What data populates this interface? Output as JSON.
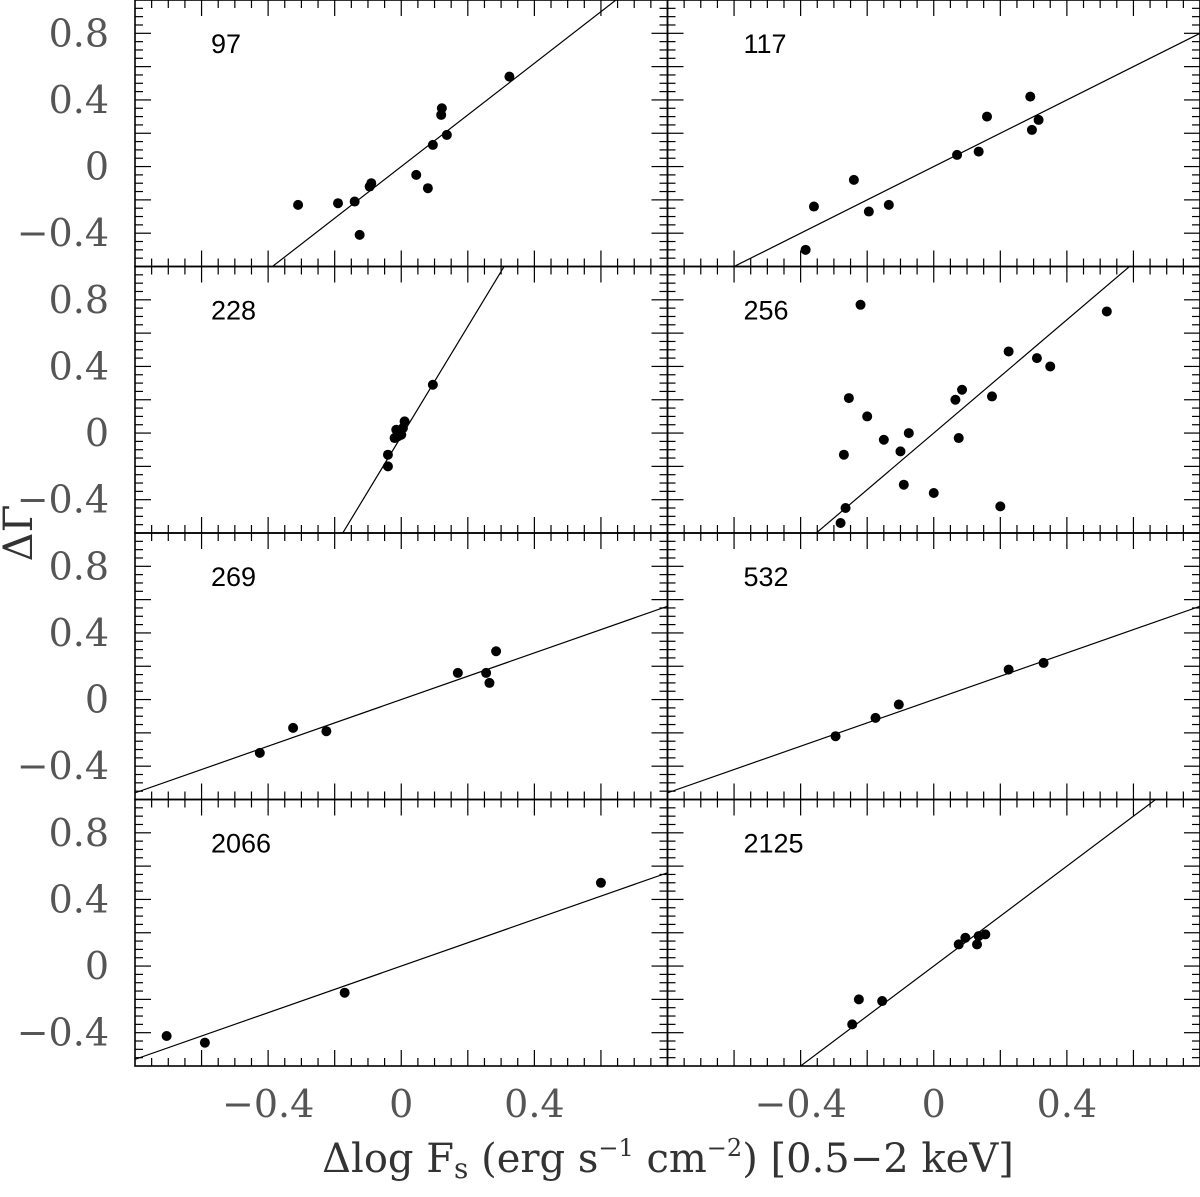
{
  "chart_data": {
    "type": "scatter",
    "layout": "4x2 grid of panels with shared axes",
    "xlabel": "Δlog F",
    "xlabel_subscript": "s",
    "xlabel_units_a": " (erg s",
    "xlabel_units_sup1": "−1",
    "xlabel_units_b": " cm",
    "xlabel_units_sup2": "−2",
    "xlabel_units_c": ") [0.5−2 keV]",
    "ylabel": "ΔΓ",
    "xlim": [
      -0.8,
      0.8
    ],
    "ylim": [
      -0.6,
      1.0
    ],
    "xticks_labeled": [
      -0.4,
      0,
      0.4
    ],
    "xtick_labels": [
      "−0.4",
      "0",
      "0.4"
    ],
    "yticks_labeled": [
      -0.4,
      0,
      0.4,
      0.8
    ],
    "ytick_labels": [
      "−0.4",
      "0",
      "0.4",
      "0.8"
    ],
    "grid": false,
    "marker_color": "#000000",
    "panels": [
      {
        "label": "97",
        "fit": {
          "slope": 1.55,
          "intercept": 0.0
        },
        "points": [
          [
            -0.31,
            -0.23
          ],
          [
            -0.19,
            -0.22
          ],
          [
            -0.14,
            -0.21
          ],
          [
            -0.125,
            -0.41
          ],
          [
            -0.095,
            -0.12
          ],
          [
            -0.09,
            -0.1
          ],
          [
            0.045,
            -0.05
          ],
          [
            0.08,
            -0.13
          ],
          [
            0.095,
            0.13
          ],
          [
            0.12,
            0.31
          ],
          [
            0.122,
            0.35
          ],
          [
            0.137,
            0.19
          ],
          [
            0.325,
            0.54
          ]
        ]
      },
      {
        "label": "117",
        "fit": {
          "slope": 1.0,
          "intercept": 0.0
        },
        "points": [
          [
            -0.385,
            -0.5
          ],
          [
            -0.36,
            -0.24
          ],
          [
            -0.24,
            -0.08
          ],
          [
            -0.195,
            -0.27
          ],
          [
            -0.135,
            -0.23
          ],
          [
            0.07,
            0.07
          ],
          [
            0.135,
            0.09
          ],
          [
            0.16,
            0.3
          ],
          [
            0.29,
            0.42
          ],
          [
            0.295,
            0.22
          ],
          [
            0.315,
            0.28
          ]
        ]
      },
      {
        "label": "228",
        "fit": {
          "slope": 3.3,
          "intercept": -0.02
        },
        "points": [
          [
            -0.04,
            -0.2
          ],
          [
            -0.04,
            -0.13
          ],
          [
            -0.02,
            -0.03
          ],
          [
            -0.015,
            0.02
          ],
          [
            -0.01,
            -0.02
          ],
          [
            0.0,
            -0.01
          ],
          [
            0.005,
            0.03
          ],
          [
            0.01,
            0.07
          ],
          [
            0.095,
            0.29
          ]
        ]
      },
      {
        "label": "256",
        "fit": {
          "slope": 1.7,
          "intercept": 0.0
        },
        "points": [
          [
            -0.28,
            -0.54
          ],
          [
            -0.27,
            -0.13
          ],
          [
            -0.265,
            -0.45
          ],
          [
            -0.255,
            0.21
          ],
          [
            -0.22,
            0.77
          ],
          [
            -0.2,
            0.1
          ],
          [
            -0.15,
            -0.04
          ],
          [
            -0.1,
            -0.11
          ],
          [
            -0.09,
            -0.31
          ],
          [
            -0.075,
            0.0
          ],
          [
            0.0,
            -0.36
          ],
          [
            0.065,
            0.2
          ],
          [
            0.075,
            -0.03
          ],
          [
            0.085,
            0.26
          ],
          [
            0.175,
            0.22
          ],
          [
            0.2,
            -0.44
          ],
          [
            0.225,
            0.49
          ],
          [
            0.31,
            0.45
          ],
          [
            0.35,
            0.4
          ],
          [
            0.52,
            0.73
          ]
        ]
      },
      {
        "label": "269",
        "fit": {
          "slope": 0.7,
          "intercept": 0.0
        },
        "points": [
          [
            -0.425,
            -0.32
          ],
          [
            -0.325,
            -0.17
          ],
          [
            -0.225,
            -0.19
          ],
          [
            0.17,
            0.16
          ],
          [
            0.255,
            0.16
          ],
          [
            0.265,
            0.1
          ],
          [
            0.285,
            0.29
          ]
        ]
      },
      {
        "label": "532",
        "fit": {
          "slope": 0.7,
          "intercept": 0.0
        },
        "points": [
          [
            -0.295,
            -0.22
          ],
          [
            -0.175,
            -0.11
          ],
          [
            -0.105,
            -0.03
          ],
          [
            0.225,
            0.18
          ],
          [
            0.33,
            0.22
          ]
        ]
      },
      {
        "label": "2066",
        "fit": {
          "slope": 0.7,
          "intercept": 0.0
        },
        "points": [
          [
            -0.705,
            -0.42
          ],
          [
            -0.59,
            -0.46
          ],
          [
            -0.17,
            -0.16
          ],
          [
            0.6,
            0.5
          ]
        ]
      },
      {
        "label": "2125",
        "fit": {
          "slope": 1.5,
          "intercept": 0.0
        },
        "points": [
          [
            -0.245,
            -0.35
          ],
          [
            -0.225,
            -0.2
          ],
          [
            -0.155,
            -0.21
          ],
          [
            0.075,
            0.13
          ],
          [
            0.095,
            0.17
          ],
          [
            0.13,
            0.13
          ],
          [
            0.135,
            0.18
          ],
          [
            0.155,
            0.19
          ]
        ]
      }
    ]
  }
}
